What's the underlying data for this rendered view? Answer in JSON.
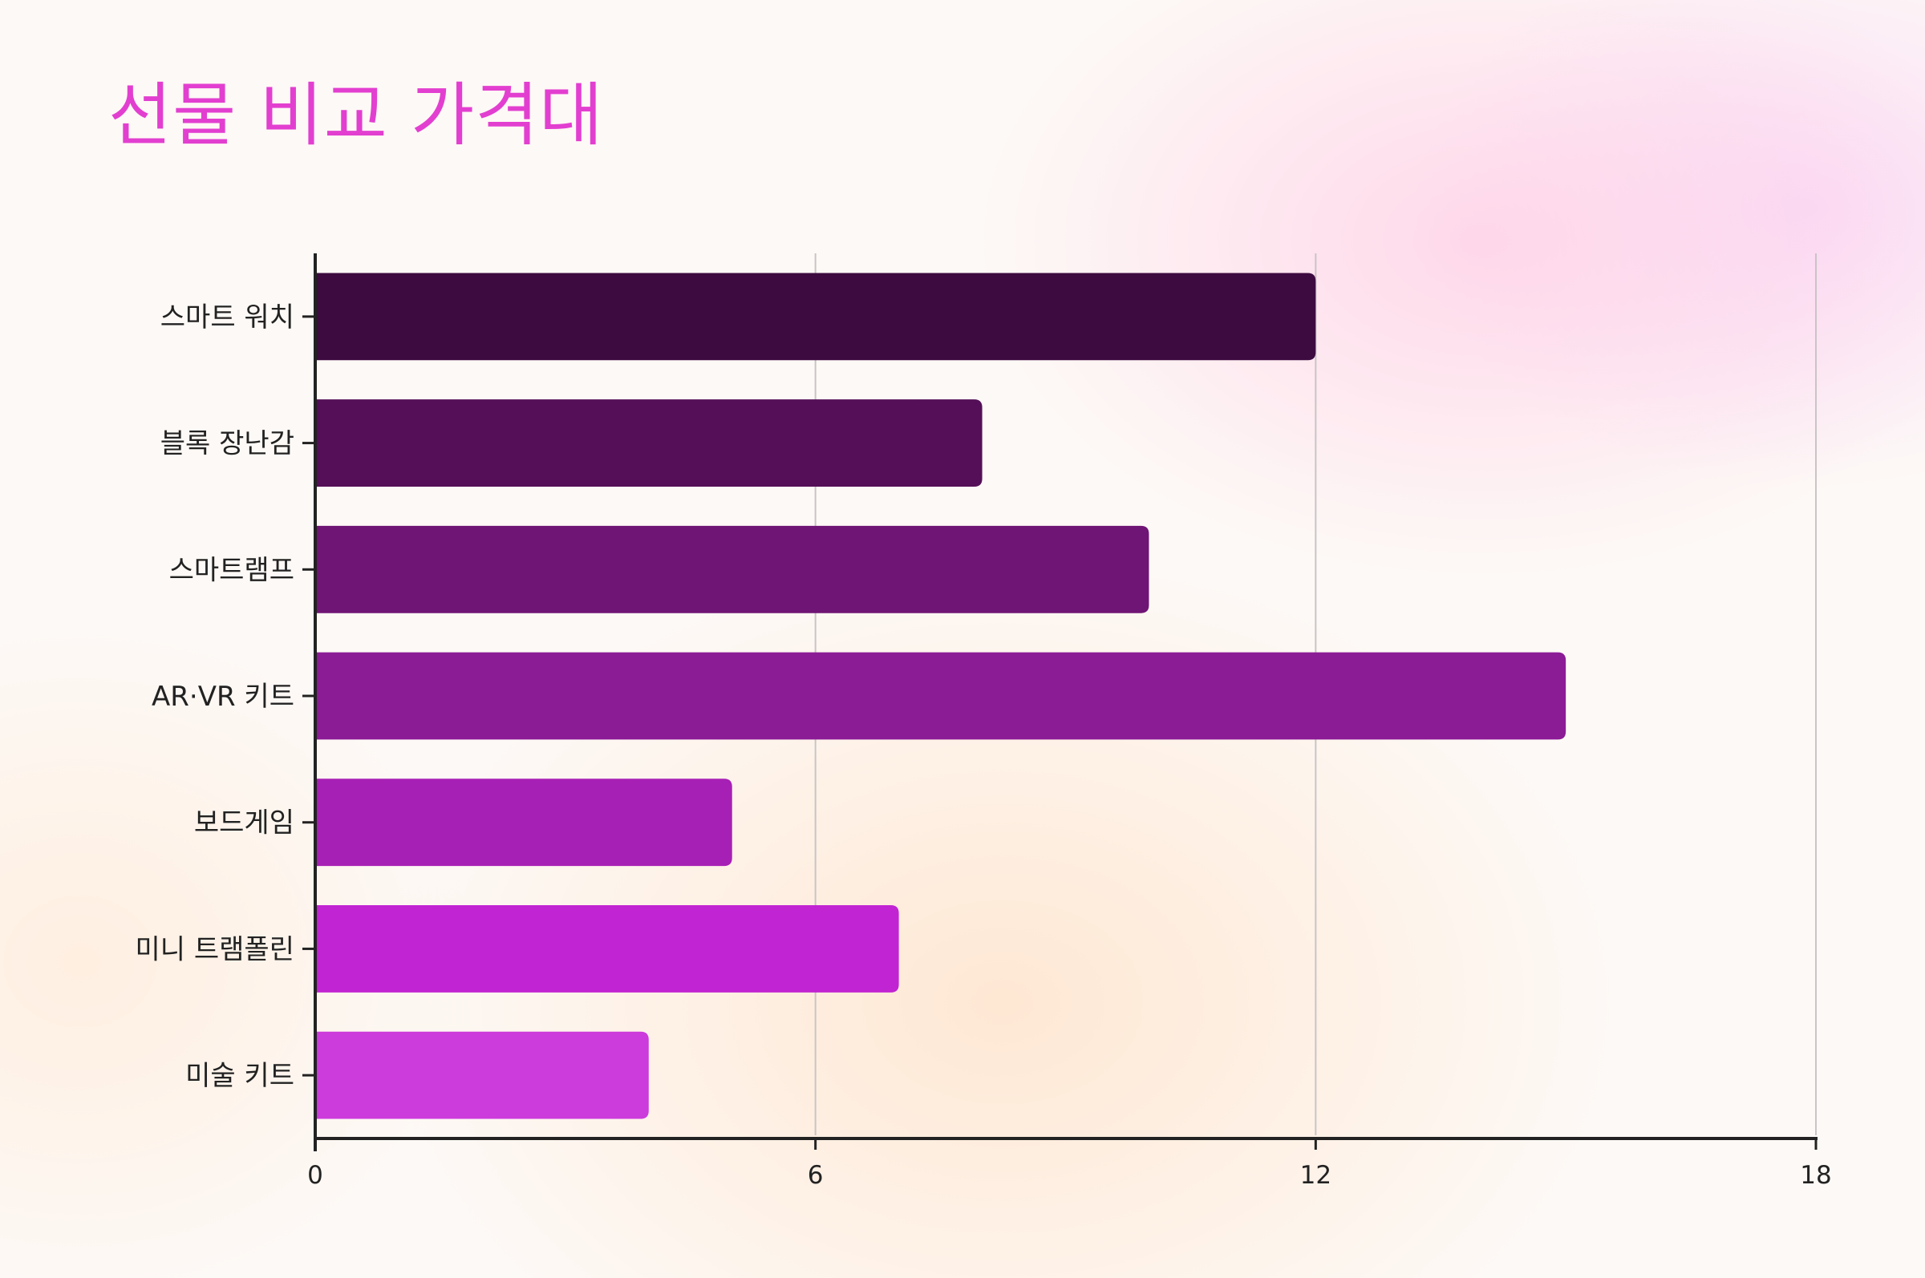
{
  "title": "선물 비교 가격대",
  "colors": {
    "title": "#e23fd0",
    "axis": "#222222",
    "grid": "#c9c4c6",
    "bars": [
      "#3d0b40",
      "#540f58",
      "#6f1575",
      "#8c1b96",
      "#a720b5",
      "#c124d2",
      "#cc3bdb"
    ]
  },
  "chart_data": {
    "type": "bar",
    "orientation": "horizontal",
    "title": "선물 비교 가격대",
    "xlabel": "",
    "ylabel": "",
    "categories": [
      "스마트 워치",
      "블록 장난감",
      "스마트램프",
      "AR·VR 키트",
      "보드게임",
      "미니 트램폴린",
      "미술 키트"
    ],
    "values": [
      12,
      8,
      10,
      15,
      5,
      7,
      4
    ],
    "xlim": [
      0,
      18
    ],
    "xticks": [
      "0",
      "6",
      "12",
      "18"
    ],
    "grid": "vertical",
    "legend": "none"
  }
}
